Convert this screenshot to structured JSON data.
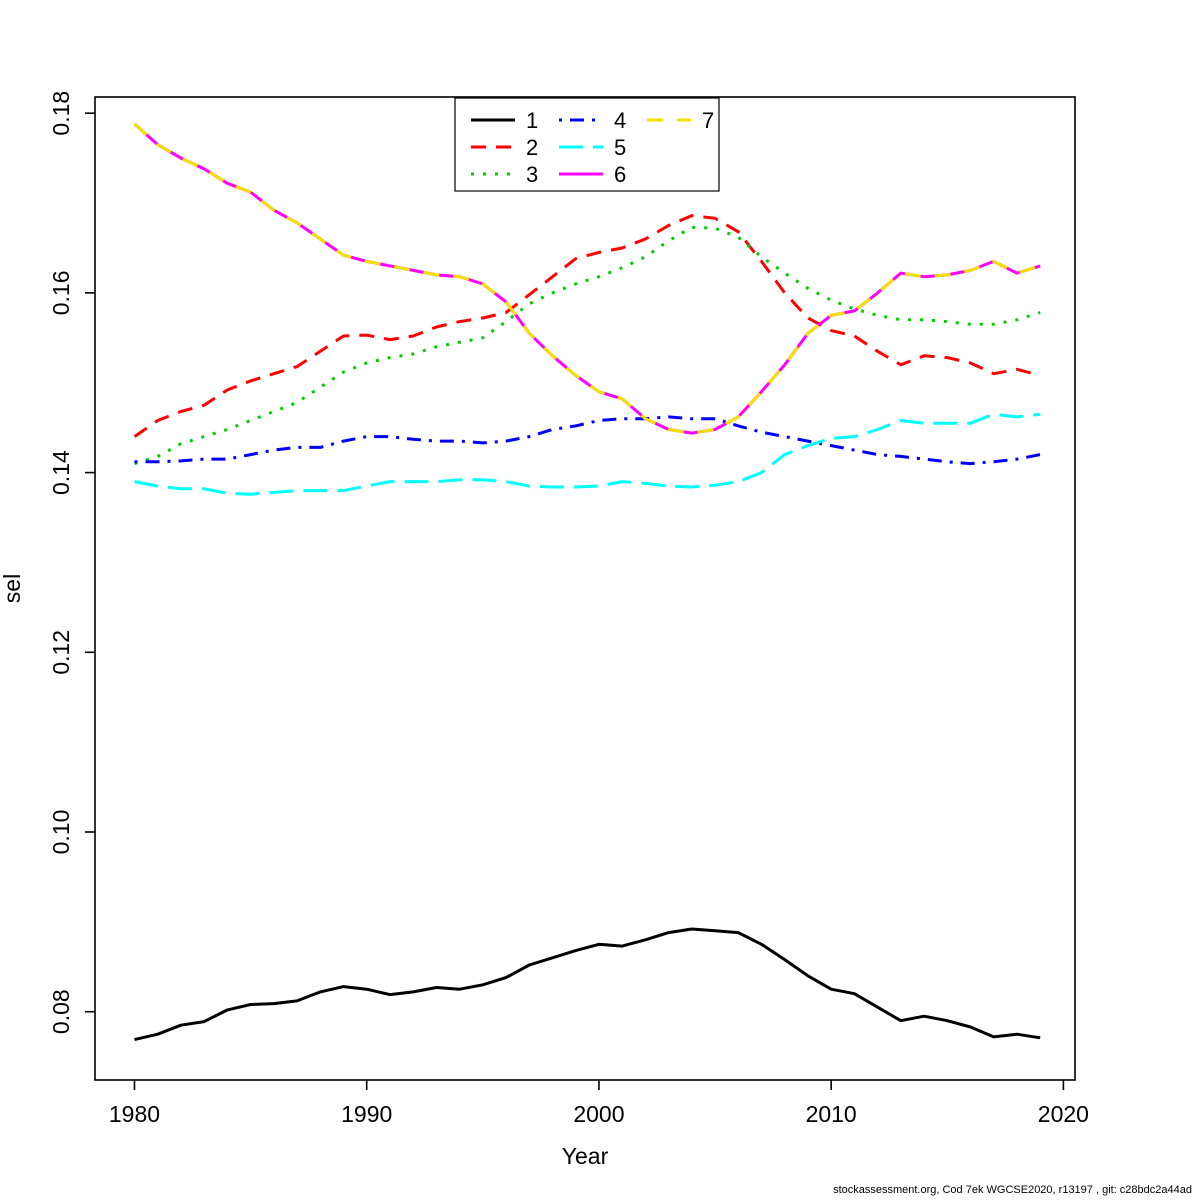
{
  "figure": {
    "background": "#ffffff",
    "axis_color": "#000000"
  },
  "footer": {
    "text": "stockassessment.org, Cod 7ek WGCSE2020, r13197 , git: c28bdc2a44ad"
  },
  "chart_data": {
    "type": "line",
    "title": "",
    "xlabel": "Year",
    "ylabel": "sel",
    "grid": false,
    "legend_position": "top-center",
    "xlim": [
      1978.3,
      2020.5
    ],
    "ylim": [
      0.0724,
      0.1818
    ],
    "xticks": [
      1980,
      1990,
      2000,
      2010,
      2020
    ],
    "yticks": [
      {
        "v": 0.08,
        "label": "0.08"
      },
      {
        "v": 0.1,
        "label": "0.10"
      },
      {
        "v": 0.12,
        "label": "0.12"
      },
      {
        "v": 0.14,
        "label": "0.14"
      },
      {
        "v": 0.16,
        "label": "0.16"
      },
      {
        "v": 0.18,
        "label": "0.18"
      }
    ],
    "x": [
      1980,
      1981,
      1982,
      1983,
      1984,
      1985,
      1986,
      1987,
      1988,
      1989,
      1990,
      1991,
      1992,
      1993,
      1994,
      1995,
      1996,
      1997,
      1998,
      1999,
      2000,
      2001,
      2002,
      2003,
      2004,
      2005,
      2006,
      2007,
      2008,
      2009,
      2010,
      2011,
      2012,
      2013,
      2014,
      2015,
      2016,
      2017,
      2018,
      2019
    ],
    "series": [
      {
        "name": "1",
        "color": "#000000",
        "dash": "",
        "values": [
          0.0769,
          0.0775,
          0.0785,
          0.0789,
          0.0802,
          0.0808,
          0.0809,
          0.0812,
          0.0822,
          0.0828,
          0.0825,
          0.0819,
          0.0822,
          0.0827,
          0.0825,
          0.083,
          0.0838,
          0.0852,
          0.086,
          0.0868,
          0.0875,
          0.0873,
          0.088,
          0.0888,
          0.0892,
          0.089,
          0.0888,
          0.0875,
          0.0858,
          0.084,
          0.0825,
          0.082,
          0.0805,
          0.079,
          0.0795,
          0.079,
          0.0783,
          0.0772,
          0.0775,
          0.0771
        ]
      },
      {
        "name": "2",
        "color": "#ff0000",
        "dash": "15 10",
        "values": [
          0.144,
          0.1458,
          0.1468,
          0.1475,
          0.1492,
          0.1502,
          0.151,
          0.1518,
          0.1535,
          0.1552,
          0.1553,
          0.1548,
          0.1552,
          0.1562,
          0.1568,
          0.1572,
          0.1578,
          0.1598,
          0.1618,
          0.1638,
          0.1645,
          0.165,
          0.166,
          0.1675,
          0.1686,
          0.1683,
          0.1668,
          0.1635,
          0.16,
          0.1572,
          0.1558,
          0.1552,
          0.1535,
          0.152,
          0.153,
          0.1528,
          0.1522,
          0.151,
          0.1515,
          0.1508
        ]
      },
      {
        "name": "3",
        "color": "#00cd00",
        "dash": "3 9",
        "values": [
          0.141,
          0.1418,
          0.1432,
          0.144,
          0.1448,
          0.1458,
          0.1468,
          0.1478,
          0.1495,
          0.1512,
          0.1522,
          0.1528,
          0.1532,
          0.154,
          0.1545,
          0.155,
          0.1568,
          0.1588,
          0.16,
          0.161,
          0.1618,
          0.1628,
          0.164,
          0.1658,
          0.1673,
          0.1672,
          0.1662,
          0.164,
          0.1622,
          0.1605,
          0.1592,
          0.1582,
          0.1575,
          0.157,
          0.157,
          0.1568,
          0.1565,
          0.1565,
          0.157,
          0.1578
        ]
      },
      {
        "name": "4",
        "color": "#0000ff",
        "dash": "3 8 14 8",
        "values": [
          0.1412,
          0.1412,
          0.1413,
          0.1415,
          0.1415,
          0.142,
          0.1425,
          0.1428,
          0.1428,
          0.1435,
          0.144,
          0.144,
          0.1437,
          0.1435,
          0.1435,
          0.1433,
          0.1435,
          0.144,
          0.1448,
          0.1452,
          0.1458,
          0.146,
          0.146,
          0.1462,
          0.146,
          0.146,
          0.1452,
          0.1445,
          0.144,
          0.1435,
          0.143,
          0.1425,
          0.142,
          0.1418,
          0.1415,
          0.1412,
          0.141,
          0.1412,
          0.1415,
          0.142
        ]
      },
      {
        "name": "5",
        "color": "#00ffff",
        "dash": "24 10",
        "values": [
          0.139,
          0.1385,
          0.1382,
          0.1382,
          0.1377,
          0.1376,
          0.1378,
          0.138,
          0.138,
          0.138,
          0.1385,
          0.139,
          0.139,
          0.139,
          0.1392,
          0.1392,
          0.139,
          0.1385,
          0.1384,
          0.1384,
          0.1385,
          0.139,
          0.1388,
          0.1385,
          0.1384,
          0.1386,
          0.139,
          0.14,
          0.142,
          0.143,
          0.1438,
          0.144,
          0.1448,
          0.1458,
          0.1455,
          0.1455,
          0.1455,
          0.1465,
          0.1462,
          0.1465
        ]
      },
      {
        "name": "6",
        "color": "#ff00ff",
        "dash": "",
        "values": [
          0.1788,
          0.1765,
          0.175,
          0.1738,
          0.1722,
          0.1712,
          0.1692,
          0.1678,
          0.166,
          0.1642,
          0.1635,
          0.163,
          0.1625,
          0.162,
          0.1618,
          0.161,
          0.159,
          0.1555,
          0.153,
          0.1508,
          0.149,
          0.1482,
          0.146,
          0.1448,
          0.1444,
          0.1448,
          0.1462,
          0.149,
          0.152,
          0.1555,
          0.1575,
          0.158,
          0.16,
          0.1622,
          0.1618,
          0.162,
          0.1625,
          0.1635,
          0.1622,
          0.163
        ]
      },
      {
        "name": "7",
        "color": "#f5e000",
        "dash": "16 14",
        "values": [
          0.1788,
          0.1765,
          0.175,
          0.1738,
          0.1722,
          0.1712,
          0.1692,
          0.1678,
          0.166,
          0.1642,
          0.1635,
          0.163,
          0.1625,
          0.162,
          0.1618,
          0.161,
          0.159,
          0.1555,
          0.153,
          0.1508,
          0.149,
          0.1482,
          0.146,
          0.1448,
          0.1444,
          0.1448,
          0.1462,
          0.149,
          0.152,
          0.1555,
          0.1575,
          0.158,
          0.16,
          0.1622,
          0.1618,
          0.162,
          0.1625,
          0.1635,
          0.1622,
          0.163
        ]
      }
    ]
  }
}
